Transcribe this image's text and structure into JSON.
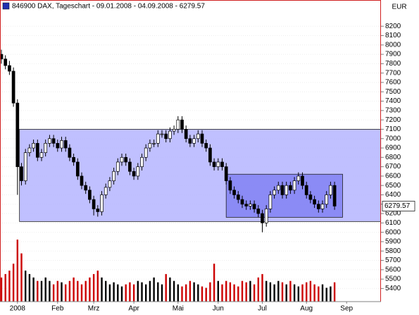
{
  "chart_data": {
    "type": "candlestick",
    "title": "846900 DAX, Tageschart - 09.01.2008 - 04.09.2008 - 6279.57",
    "currency": "EUR",
    "categories": [
      null,
      null,
      null,
      null,
      "2008",
      null,
      null,
      null,
      null,
      null,
      null,
      null,
      null,
      null,
      "Feb",
      null,
      null,
      null,
      null,
      null,
      null,
      null,
      null,
      "Mrz",
      null,
      null,
      null,
      null,
      null,
      null,
      null,
      null,
      null,
      "Apr",
      null,
      null,
      null,
      null,
      null,
      null,
      null,
      null,
      null,
      null,
      "Mai",
      null,
      null,
      null,
      null,
      null,
      null,
      null,
      null,
      null,
      "Jun",
      null,
      null,
      null,
      null,
      null,
      null,
      null,
      null,
      null,
      null,
      "Jul",
      null,
      null,
      null,
      null,
      null,
      null,
      null,
      null,
      null,
      null,
      "Aug",
      null,
      null,
      null,
      null,
      null,
      null,
      null,
      null,
      null,
      "Sep",
      null,
      null,
      null,
      null,
      null,
      null,
      null,
      null
    ],
    "open": [
      7900,
      7850,
      7780,
      7720,
      7380,
      6700,
      6550,
      6850,
      6900,
      6950,
      6800,
      6850,
      6950,
      7000,
      6950,
      6900,
      6980,
      6900,
      6800,
      6750,
      6600,
      6500,
      6450,
      6350,
      6250,
      6220,
      6400,
      6480,
      6550,
      6650,
      6750,
      6800,
      6750,
      6650,
      6600,
      6700,
      6800,
      6900,
      6950,
      6950,
      7050,
      7050,
      7000,
      7080,
      7100,
      7200,
      7100,
      7000,
      6950,
      7000,
      7050,
      6950,
      6900,
      6750,
      6700,
      6750,
      6700,
      6550,
      6450,
      6400,
      6350,
      6300,
      6280,
      6300,
      6250,
      6200,
      6100,
      6250,
      6400,
      6450,
      6500,
      6400,
      6500,
      6450,
      6550,
      6600,
      6500,
      6400,
      6350,
      6300,
      6250,
      6300,
      6400,
      6500,
      null,
      null,
      null,
      null,
      null,
      null,
      null,
      null,
      null,
      null,
      null
    ],
    "high": [
      7950,
      7890,
      7830,
      7760,
      7420,
      6740,
      6890,
      6940,
      6990,
      6990,
      6890,
      6990,
      7040,
      7040,
      6990,
      7020,
      7020,
      6940,
      6840,
      6790,
      6640,
      6540,
      6490,
      6390,
      6290,
      6440,
      6520,
      6590,
      6690,
      6790,
      6840,
      6840,
      6790,
      6690,
      6740,
      6840,
      6940,
      6990,
      6990,
      7090,
      7090,
      7090,
      7120,
      7140,
      7240,
      7240,
      7140,
      7040,
      7040,
      7090,
      7090,
      6990,
      6940,
      6790,
      6790,
      6790,
      6740,
      6590,
      6490,
      6440,
      6390,
      6340,
      6340,
      6340,
      6290,
      6240,
      6290,
      6440,
      6490,
      6540,
      6540,
      6540,
      6540,
      6590,
      6640,
      6640,
      6540,
      6440,
      6390,
      6340,
      6340,
      6440,
      6540,
      6540,
      null,
      null,
      null,
      null,
      null,
      null,
      null,
      null,
      null,
      null,
      null
    ],
    "low": [
      7800,
      7740,
      7680,
      7340,
      6400,
      6500,
      6510,
      6810,
      6860,
      6760,
      6760,
      6810,
      6910,
      6910,
      6860,
      6860,
      6860,
      6760,
      6710,
      6560,
      6460,
      6410,
      6310,
      6180,
      6167,
      6180,
      6360,
      6440,
      6510,
      6610,
      6710,
      6710,
      6610,
      6560,
      6560,
      6660,
      6760,
      6860,
      6910,
      6910,
      7010,
      6960,
      6960,
      7040,
      7060,
      7060,
      6960,
      6910,
      6910,
      6960,
      6910,
      6860,
      6710,
      6660,
      6660,
      6660,
      6510,
      6410,
      6360,
      6310,
      6260,
      6240,
      6240,
      6210,
      6160,
      6000,
      6060,
      6210,
      6360,
      6410,
      6360,
      6360,
      6410,
      6410,
      6510,
      6460,
      6360,
      6310,
      6260,
      6210,
      6210,
      6260,
      6360,
      6240,
      null,
      null,
      null,
      null,
      null,
      null,
      null,
      null,
      null,
      null,
      null
    ],
    "close": [
      7850,
      7780,
      7720,
      7380,
      6700,
      6550,
      6850,
      6900,
      6950,
      6800,
      6850,
      6950,
      7000,
      6950,
      6900,
      6980,
      6900,
      6800,
      6750,
      6600,
      6500,
      6450,
      6350,
      6250,
      6220,
      6400,
      6480,
      6550,
      6650,
      6750,
      6800,
      6750,
      6650,
      6600,
      6700,
      6800,
      6900,
      6950,
      6950,
      7050,
      7050,
      7000,
      7080,
      7100,
      7200,
      7100,
      7000,
      6950,
      7000,
      7050,
      6950,
      6900,
      6750,
      6700,
      6750,
      6700,
      6550,
      6450,
      6400,
      6350,
      6300,
      6280,
      6300,
      6250,
      6200,
      6100,
      6250,
      6400,
      6450,
      6500,
      6400,
      6500,
      6450,
      6550,
      6600,
      6500,
      6400,
      6350,
      6300,
      6250,
      6300,
      6400,
      6500,
      6279.57,
      null,
      null,
      null,
      null,
      null,
      null,
      null,
      null,
      null,
      null,
      null
    ],
    "volume": [
      35,
      40,
      45,
      55,
      90,
      70,
      45,
      40,
      35,
      30,
      30,
      35,
      30,
      25,
      30,
      28,
      25,
      30,
      35,
      30,
      25,
      30,
      35,
      40,
      45,
      35,
      30,
      25,
      28,
      25,
      22,
      25,
      28,
      25,
      30,
      28,
      25,
      30,
      35,
      28,
      25,
      40,
      35,
      30,
      25,
      22,
      25,
      30,
      28,
      25,
      22,
      20,
      28,
      55,
      30,
      25,
      30,
      28,
      25,
      22,
      30,
      28,
      30,
      25,
      35,
      40,
      30,
      28,
      25,
      30,
      28,
      25,
      30,
      25,
      22,
      25,
      28,
      30,
      25,
      22,
      25,
      20,
      22,
      28,
      null,
      null,
      null,
      null,
      null,
      null,
      null,
      null,
      null,
      null,
      null
    ],
    "up_color": "#000000",
    "down_color": "#cc0000",
    "zones": [
      {
        "from": 4.5,
        "to": 94.5,
        "ylim": [
          6115,
          7100
        ],
        "color": "#b0b0ff"
      },
      {
        "from": 56,
        "to": 85,
        "ylim": [
          6160,
          6620
        ],
        "color": "#7d7df2"
      }
    ],
    "ylim": [
      5260,
      8480
    ],
    "yticks": [
      5400,
      5500,
      5600,
      5700,
      5800,
      5900,
      6000,
      6100,
      6200,
      6300,
      6400,
      6500,
      6600,
      6700,
      6800,
      6900,
      7000,
      7100,
      7200,
      7300,
      7400,
      7500,
      7600,
      7700,
      7800,
      7900,
      8000,
      8100,
      8200
    ],
    "grid": true
  }
}
